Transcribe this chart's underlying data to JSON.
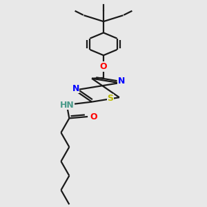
{
  "background_color": "#e8e8e8",
  "bond_color": "#1a1a1a",
  "sulfur_color": "#b8b800",
  "nitrogen_color": "#0000ff",
  "oxygen_color": "#ff0000",
  "nh_color": "#4a9a8a",
  "figsize": [
    3.0,
    3.0
  ],
  "dpi": 100,
  "xlim": [
    0.25,
    0.75
  ],
  "ylim": [
    0.0,
    1.0
  ]
}
